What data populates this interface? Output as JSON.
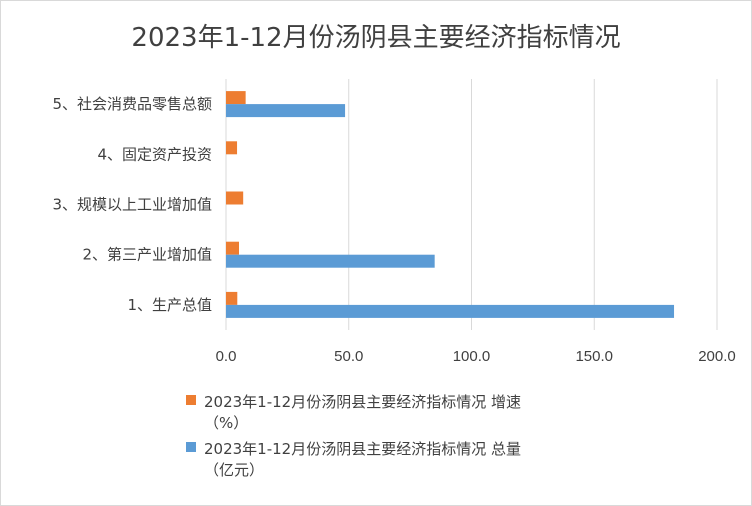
{
  "chart_data": {
    "type": "bar",
    "orientation": "horizontal",
    "title": "2023年1-12月份汤阴县主要经济指标情况",
    "categories": [
      "1、生产总值",
      "2、第三产业增加值",
      "3、规模以上工业增加值",
      "4、固定资产投资",
      "5、社会消费品零售总额"
    ],
    "series": [
      {
        "name": "2023年1-12月份汤阴县主要经济指标情况 增速（%）",
        "legend_lines": [
          "2023年1-12月份汤阴县主要经济指标情况 增速",
          "（%）"
        ],
        "color": "#ED7D31",
        "values": [
          4.6,
          5.3,
          7.0,
          4.5,
          8.0
        ]
      },
      {
        "name": "2023年1-12月份汤阴县主要经济指标情况 总量（亿元）",
        "legend_lines": [
          "2023年1-12月份汤阴县主要经济指标情况 总量",
          "（亿元）"
        ],
        "color": "#5B9BD5",
        "values": [
          182.5,
          85.0,
          null,
          null,
          48.5
        ]
      }
    ],
    "xlim": [
      0,
      200
    ],
    "xticks": [
      "0.0",
      "50.0",
      "100.0",
      "150.0",
      "200.0"
    ],
    "grid": "vertical",
    "legend_position": "bottom"
  }
}
